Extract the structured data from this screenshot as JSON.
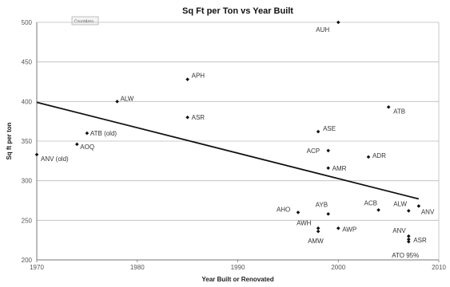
{
  "chart_data": {
    "type": "scatter",
    "title": "Sq Ft per Ton vs Year Built",
    "xlabel": "Year Built or Renovated",
    "ylabel": "Sq ft per ton",
    "xlim": [
      1970,
      2010
    ],
    "ylim": [
      200,
      500
    ],
    "xticks": [
      "1970",
      "1980",
      "1990",
      "2000",
      "2010"
    ],
    "yticks": [
      "200",
      "250",
      "300",
      "350",
      "400",
      "450",
      "500"
    ],
    "grid": true,
    "legend": "none",
    "annotation": "CountArea",
    "points": [
      {
        "label": "AUH",
        "x": 2000,
        "y": 500
      },
      {
        "label": "APH",
        "x": 1985,
        "y": 428
      },
      {
        "label": "ALW",
        "x": 1978,
        "y": 400
      },
      {
        "label": "ATB",
        "x": 2005,
        "y": 393
      },
      {
        "label": "ASR",
        "x": 1985,
        "y": 380
      },
      {
        "label": "ASE",
        "x": 1998,
        "y": 362
      },
      {
        "label": "ATB (old)",
        "x": 1975,
        "y": 360
      },
      {
        "label": "AOQ",
        "x": 1974,
        "y": 346
      },
      {
        "label": "ACP",
        "x": 1999,
        "y": 338
      },
      {
        "label": "ANV (old)",
        "x": 1970,
        "y": 333
      },
      {
        "label": "ADR",
        "x": 2003,
        "y": 330
      },
      {
        "label": "AMR",
        "x": 1999,
        "y": 316
      },
      {
        "label": "ALW",
        "x": 2007,
        "y": 262
      },
      {
        "label": "ANV",
        "x": 2008,
        "y": 268
      },
      {
        "label": "AYB",
        "x": 1999,
        "y": 258
      },
      {
        "label": "ACB",
        "x": 2004,
        "y": 263
      },
      {
        "label": "AHO",
        "x": 1996,
        "y": 260
      },
      {
        "label": "AWH",
        "x": 1998,
        "y": 240
      },
      {
        "label": "AMW",
        "x": 1998,
        "y": 236
      },
      {
        "label": "AWP",
        "x": 2000,
        "y": 240
      },
      {
        "label": "ANV",
        "x": 2007,
        "y": 230
      },
      {
        "label": "ASR",
        "x": 2007,
        "y": 226
      },
      {
        "label": "ATO 95%",
        "x": 2007,
        "y": 223
      }
    ],
    "trendline": {
      "x": [
        1970,
        2008
      ],
      "y": [
        399,
        277
      ]
    },
    "colors": {
      "marker": "#111111",
      "trendline": "#111111",
      "grid": "#bbbbbb"
    }
  }
}
